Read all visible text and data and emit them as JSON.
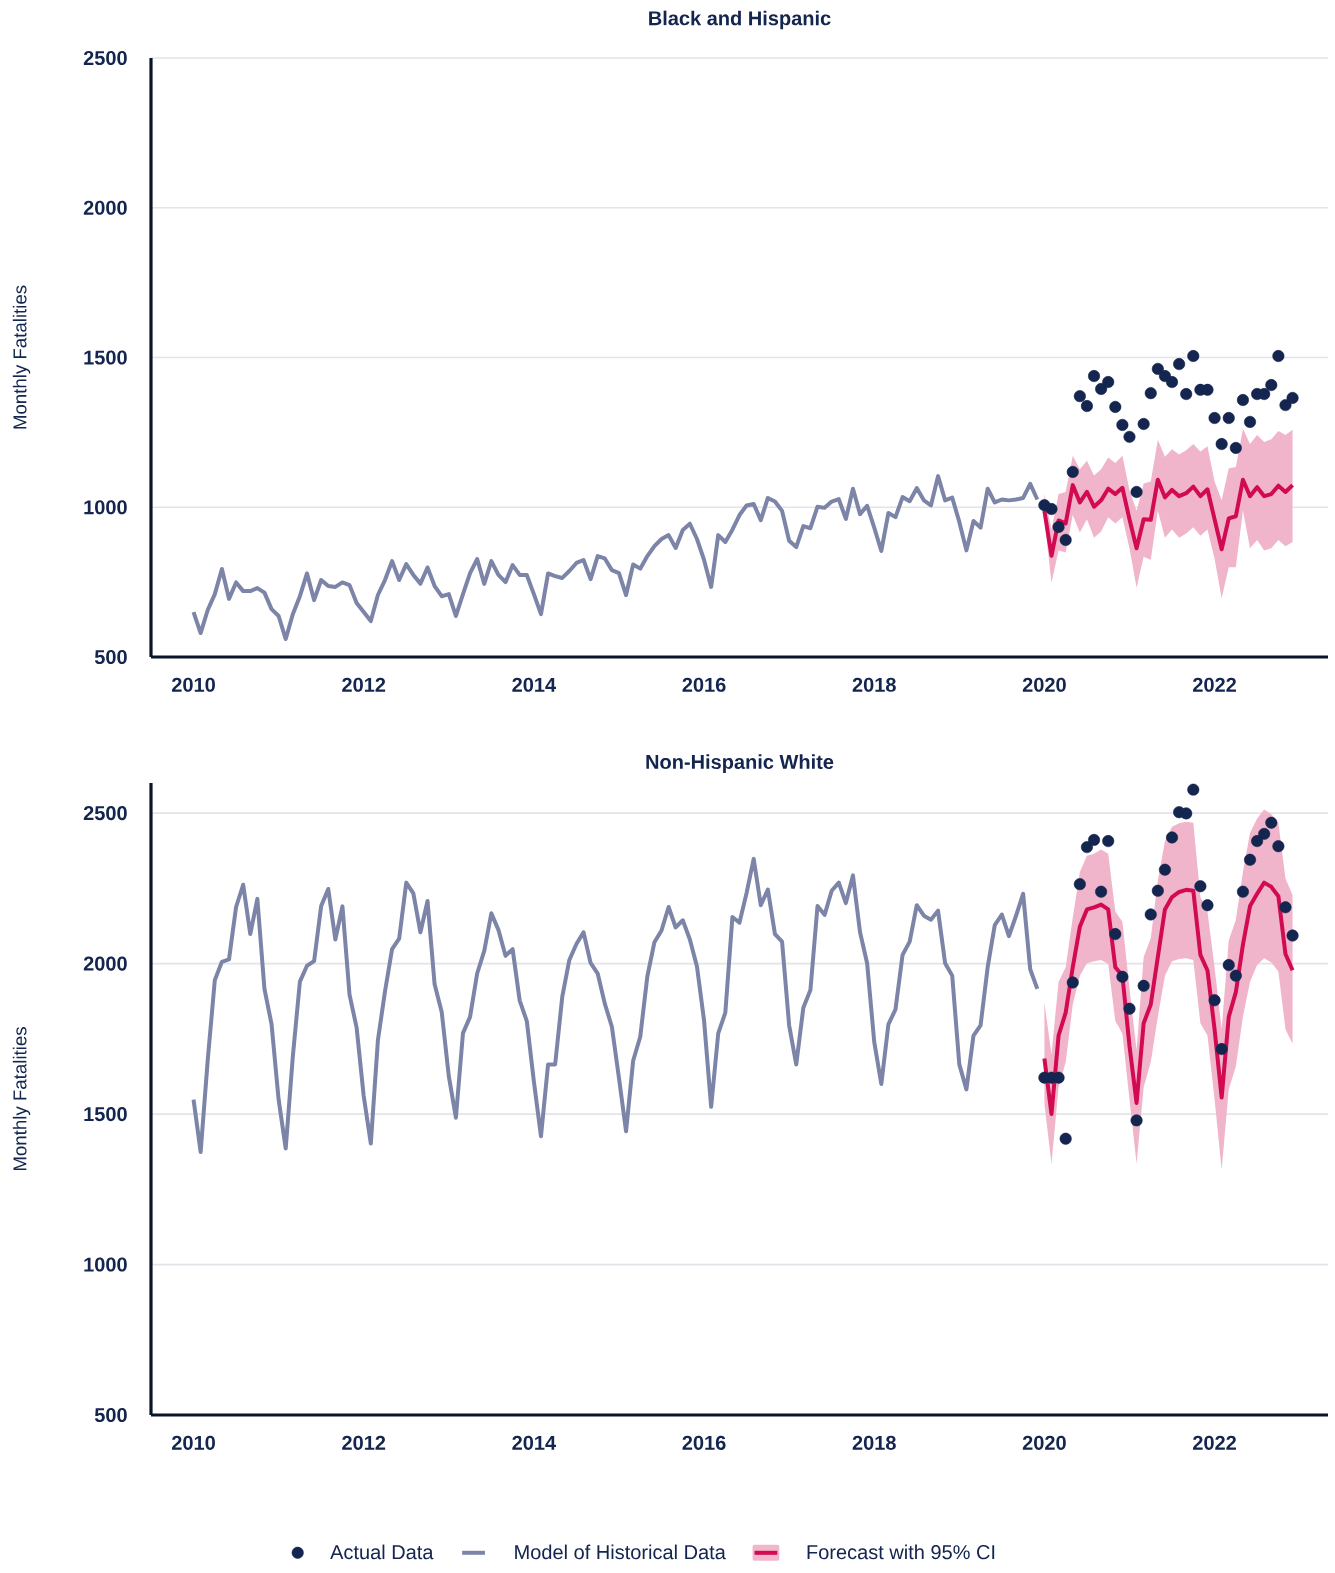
{
  "chart_data": [
    {
      "type": "line",
      "title": "Black and Hispanic",
      "ylabel": "Monthly Fatalities",
      "xlim": [
        "2009-07",
        "2023-05"
      ],
      "ylim": [
        500,
        2500
      ],
      "xticks": [
        "2010",
        "2012",
        "2014",
        "2016",
        "2018",
        "2020",
        "2022"
      ],
      "yticks": [
        500,
        1000,
        1500,
        2000,
        2500
      ],
      "grid": "y",
      "series": [
        {
          "type": "scatter",
          "marker": "circle",
          "color": "#14264f",
          "x": [
            "2020-01",
            "2020-02",
            "2020-03",
            "2020-04",
            "2020-05",
            "2020-06",
            "2020-07",
            "2020-08",
            "2020-09",
            "2020-10",
            "2020-11",
            "2020-12",
            "2021-01",
            "2021-02",
            "2021-03",
            "2021-04",
            "2021-05",
            "2021-06",
            "2021-07",
            "2021-08",
            "2021-09",
            "2021-10",
            "2021-11",
            "2021-12",
            "2022-01",
            "2022-02",
            "2022-03",
            "2022-04",
            "2022-05",
            "2022-06",
            "2022-07",
            "2022-08",
            "2022-09",
            "2022-10",
            "2022-11",
            "2022-12"
          ],
          "values": [
            1007,
            994,
            934,
            891,
            1118,
            1371,
            1338,
            1438,
            1395,
            1418,
            1335,
            1275,
            1235,
            1051,
            1278,
            1381,
            1462,
            1438,
            1418,
            1478,
            1378,
            1505,
            1392,
            1392,
            1298,
            1211,
            1298,
            1198,
            1358,
            1285,
            1378,
            1378,
            1408,
            1505,
            1341,
            1365
          ]
        },
        {
          "color": "#7c84a8",
          "x": [
            "2010-01",
            "2010-02",
            "2010-03",
            "2010-04",
            "2010-05",
            "2010-06",
            "2010-07",
            "2010-08",
            "2010-09",
            "2010-10",
            "2010-11",
            "2010-12",
            "2011-01",
            "2011-02",
            "2011-03",
            "2011-04",
            "2011-05",
            "2011-06",
            "2011-07",
            "2011-08",
            "2011-09",
            "2011-10",
            "2011-11",
            "2011-12",
            "2012-01",
            "2012-02",
            "2012-03",
            "2012-04",
            "2012-05",
            "2012-06",
            "2012-07",
            "2012-08",
            "2012-09",
            "2012-10",
            "2012-11",
            "2012-12",
            "2013-01",
            "2013-02",
            "2013-03",
            "2013-04",
            "2013-05",
            "2013-06",
            "2013-07",
            "2013-08",
            "2013-09",
            "2013-10",
            "2013-11",
            "2013-12",
            "2014-01",
            "2014-02",
            "2014-03",
            "2014-04",
            "2014-05",
            "2014-06",
            "2014-07",
            "2014-08",
            "2014-09",
            "2014-10",
            "2014-11",
            "2014-12",
            "2015-01",
            "2015-02",
            "2015-03",
            "2015-04",
            "2015-05",
            "2015-06",
            "2015-07",
            "2015-08",
            "2015-09",
            "2015-10",
            "2015-11",
            "2015-12",
            "2016-01",
            "2016-02",
            "2016-03",
            "2016-04",
            "2016-05",
            "2016-06",
            "2016-07",
            "2016-08",
            "2016-09",
            "2016-10",
            "2016-11",
            "2016-12",
            "2017-01",
            "2017-02",
            "2017-03",
            "2017-04",
            "2017-05",
            "2017-06",
            "2017-07",
            "2017-08",
            "2017-09",
            "2017-10",
            "2017-11",
            "2017-12",
            "2018-01",
            "2018-02",
            "2018-03",
            "2018-04",
            "2018-05",
            "2018-06",
            "2018-07",
            "2018-08",
            "2018-09",
            "2018-10",
            "2018-11",
            "2018-12",
            "2019-01",
            "2019-02",
            "2019-03",
            "2019-04",
            "2019-05",
            "2019-06",
            "2019-07",
            "2019-08",
            "2019-09",
            "2019-10",
            "2019-11",
            "2019-12"
          ],
          "values": [
            650,
            580,
            657,
            710,
            794,
            694,
            749,
            720,
            720,
            730,
            715,
            660,
            637,
            560,
            643,
            703,
            779,
            690,
            757,
            737,
            734,
            749,
            740,
            680,
            650,
            620,
            707,
            757,
            820,
            757,
            810,
            774,
            745,
            799,
            737,
            703,
            710,
            637,
            710,
            780,
            827,
            744,
            820,
            774,
            750,
            807,
            774,
            774,
            710,
            643,
            779,
            770,
            764,
            787,
            814,
            824,
            760,
            837,
            829,
            790,
            780,
            707,
            809,
            795,
            837,
            870,
            894,
            907,
            864,
            924,
            945,
            894,
            824,
            734,
            907,
            884,
            925,
            974,
            1006,
            1011,
            957,
            1031,
            1019,
            988,
            888,
            867,
            937,
            930,
            1002,
            998,
            1019,
            1027,
            961,
            1062,
            977,
            1005,
            932,
            854,
            981,
            967,
            1034,
            1020,
            1064,
            1023,
            1006,
            1104,
            1023,
            1032,
            951,
            856,
            954,
            932,
            1062,
            1016,
            1026,
            1023,
            1026,
            1031,
            1078,
            1026
          ]
        },
        {
          "color": "#d10a52",
          "x": [
            "2020-01",
            "2020-02",
            "2020-03",
            "2020-04",
            "2020-05",
            "2020-06",
            "2020-07",
            "2020-08",
            "2020-09",
            "2020-10",
            "2020-11",
            "2020-12",
            "2021-01",
            "2021-02",
            "2021-03",
            "2021-04",
            "2021-05",
            "2021-06",
            "2021-07",
            "2021-08",
            "2021-09",
            "2021-10",
            "2021-11",
            "2021-12",
            "2022-01",
            "2022-02",
            "2022-03",
            "2022-04",
            "2022-05",
            "2022-06",
            "2022-07",
            "2022-08",
            "2022-09",
            "2022-10",
            "2022-11",
            "2022-12"
          ],
          "values": [
            988,
            838,
            956,
            946,
            1074,
            1016,
            1051,
            1002,
            1023,
            1062,
            1044,
            1065,
            960,
            863,
            960,
            958,
            1092,
            1033,
            1058,
            1037,
            1047,
            1069,
            1037,
            1060,
            960,
            860,
            963,
            970,
            1092,
            1037,
            1067,
            1037,
            1044,
            1072,
            1051,
            1074
          ],
          "upper": [
            1044,
            926,
            1044,
            1051,
            1172,
            1127,
            1155,
            1106,
            1127,
            1166,
            1148,
            1172,
            1058,
            988,
            1079,
            1086,
            1225,
            1169,
            1194,
            1176,
            1190,
            1211,
            1186,
            1204,
            1086,
            1023,
            1130,
            1134,
            1262,
            1211,
            1241,
            1218,
            1227,
            1255,
            1241,
            1259
          ],
          "lower": [
            960,
            748,
            856,
            849,
            974,
            916,
            960,
            898,
            919,
            967,
            946,
            967,
            863,
            731,
            835,
            824,
            988,
            898,
            926,
            898,
            912,
            933,
            905,
            926,
            828,
            696,
            800,
            800,
            988,
            863,
            891,
            856,
            863,
            891,
            870,
            884
          ]
        }
      ]
    },
    {
      "type": "line",
      "title": "Non-Hispanic White",
      "ylabel": "Monthly Fatalities",
      "xlim": [
        "2009-07",
        "2023-05"
      ],
      "ylim": [
        500,
        2600
      ],
      "xticks": [
        "2010",
        "2012",
        "2014",
        "2016",
        "2018",
        "2020",
        "2022"
      ],
      "yticks": [
        500,
        1000,
        1500,
        2000,
        2500
      ],
      "grid": "y",
      "legend": "bottom",
      "series": [
        {
          "name": "Actual Data",
          "type": "scatter",
          "marker": "circle",
          "color": "#14264f",
          "x": [
            "2020-01",
            "2020-02",
            "2020-03",
            "2020-04",
            "2020-05",
            "2020-06",
            "2020-07",
            "2020-08",
            "2020-09",
            "2020-10",
            "2020-11",
            "2020-12",
            "2021-01",
            "2021-02",
            "2021-03",
            "2021-04",
            "2021-05",
            "2021-06",
            "2021-07",
            "2021-08",
            "2021-09",
            "2021-10",
            "2021-11",
            "2021-12",
            "2022-01",
            "2022-02",
            "2022-03",
            "2022-04",
            "2022-05",
            "2022-06",
            "2022-07",
            "2022-08",
            "2022-09",
            "2022-10",
            "2022-11",
            "2022-12"
          ],
          "values": [
            1621,
            1621,
            1621,
            1418,
            1937,
            2264,
            2387,
            2411,
            2239,
            2407,
            2098,
            1956,
            1850,
            1479,
            1926,
            2163,
            2242,
            2312,
            2419,
            2503,
            2499,
            2578,
            2257,
            2194,
            1878,
            1716,
            1995,
            1960,
            2239,
            2345,
            2407,
            2431,
            2468,
            2390,
            2187,
            2093
          ]
        },
        {
          "name": "Model of Historical Data",
          "color": "#7c84a8",
          "x": [
            "2010-01",
            "2010-02",
            "2010-03",
            "2010-04",
            "2010-05",
            "2010-06",
            "2010-07",
            "2010-08",
            "2010-09",
            "2010-10",
            "2010-11",
            "2010-12",
            "2011-01",
            "2011-02",
            "2011-03",
            "2011-04",
            "2011-05",
            "2011-06",
            "2011-07",
            "2011-08",
            "2011-09",
            "2011-10",
            "2011-11",
            "2011-12",
            "2012-01",
            "2012-02",
            "2012-03",
            "2012-04",
            "2012-05",
            "2012-06",
            "2012-07",
            "2012-08",
            "2012-09",
            "2012-10",
            "2012-11",
            "2012-12",
            "2013-01",
            "2013-02",
            "2013-03",
            "2013-04",
            "2013-05",
            "2013-06",
            "2013-07",
            "2013-08",
            "2013-09",
            "2013-10",
            "2013-11",
            "2013-12",
            "2014-01",
            "2014-02",
            "2014-03",
            "2014-04",
            "2014-05",
            "2014-06",
            "2014-07",
            "2014-08",
            "2014-09",
            "2014-10",
            "2014-11",
            "2014-12",
            "2015-01",
            "2015-02",
            "2015-03",
            "2015-04",
            "2015-05",
            "2015-06",
            "2015-07",
            "2015-08",
            "2015-09",
            "2015-10",
            "2015-11",
            "2015-12",
            "2016-01",
            "2016-02",
            "2016-03",
            "2016-04",
            "2016-05",
            "2016-06",
            "2016-07",
            "2016-08",
            "2016-09",
            "2016-10",
            "2016-11",
            "2016-12",
            "2017-01",
            "2017-02",
            "2017-03",
            "2017-04",
            "2017-05",
            "2017-06",
            "2017-07",
            "2017-08",
            "2017-09",
            "2017-10",
            "2017-11",
            "2017-12",
            "2018-01",
            "2018-02",
            "2018-03",
            "2018-04",
            "2018-05",
            "2018-06",
            "2018-07",
            "2018-08",
            "2018-09",
            "2018-10",
            "2018-11",
            "2018-12",
            "2019-01",
            "2019-02",
            "2019-03",
            "2019-04",
            "2019-05",
            "2019-06",
            "2019-07",
            "2019-08",
            "2019-09",
            "2019-10",
            "2019-11",
            "2019-12"
          ],
          "values": [
            1548,
            1374,
            1679,
            1945,
            2006,
            2014,
            2188,
            2262,
            2098,
            2215,
            1916,
            1799,
            1548,
            1386,
            1691,
            1940,
            1993,
            2008,
            2191,
            2248,
            2080,
            2190,
            1897,
            1787,
            1560,
            1402,
            1745,
            1907,
            2048,
            2083,
            2269,
            2233,
            2104,
            2208,
            1931,
            1839,
            1626,
            1488,
            1769,
            1823,
            1967,
            2042,
            2167,
            2112,
            2026,
            2048,
            1877,
            1809,
            1608,
            1426,
            1665,
            1665,
            1889,
            2012,
            2065,
            2104,
            2002,
            1967,
            1867,
            1790,
            1620,
            1443,
            1677,
            1757,
            1957,
            2071,
            2110,
            2188,
            2120,
            2144,
            2080,
            1990,
            1811,
            1524,
            1768,
            1837,
            2155,
            2136,
            2235,
            2348,
            2194,
            2246,
            2098,
            2073,
            1795,
            1665,
            1853,
            1912,
            2191,
            2162,
            2242,
            2269,
            2201,
            2293,
            2104,
            2001,
            1740,
            1600,
            1798,
            1848,
            2029,
            2073,
            2194,
            2159,
            2146,
            2176,
            2001,
            1960,
            1665,
            1582,
            1761,
            1795,
            1988,
            2128,
            2163,
            2091,
            2159,
            2232,
            1981,
            1916
          ]
        },
        {
          "name": "Forecast with 95% CI",
          "color": "#d10a52",
          "x": [
            "2020-01",
            "2020-02",
            "2020-03",
            "2020-04",
            "2020-05",
            "2020-06",
            "2020-07",
            "2020-08",
            "2020-09",
            "2020-10",
            "2020-11",
            "2020-12",
            "2021-01",
            "2021-02",
            "2021-03",
            "2021-04",
            "2021-05",
            "2021-06",
            "2021-07",
            "2021-08",
            "2021-09",
            "2021-10",
            "2021-11",
            "2021-12",
            "2022-01",
            "2022-02",
            "2022-03",
            "2022-04",
            "2022-05",
            "2022-06",
            "2022-07",
            "2022-08",
            "2022-09",
            "2022-10",
            "2022-11",
            "2022-12"
          ],
          "values": [
            1685,
            1500,
            1761,
            1837,
            1988,
            2122,
            2180,
            2187,
            2196,
            2180,
            1988,
            1960,
            1727,
            1537,
            1802,
            1864,
            2022,
            2180,
            2221,
            2238,
            2245,
            2242,
            2029,
            1977,
            1782,
            1555,
            1823,
            1905,
            2063,
            2191,
            2232,
            2269,
            2255,
            2224,
            2032,
            1978
          ],
          "upper": [
            1871,
            1699,
            1940,
            1988,
            2152,
            2304,
            2358,
            2365,
            2379,
            2365,
            2173,
            2139,
            1919,
            1713,
            2022,
            2084,
            2276,
            2407,
            2455,
            2466,
            2471,
            2468,
            2221,
            2173,
            1988,
            1782,
            2077,
            2146,
            2304,
            2434,
            2482,
            2512,
            2496,
            2468,
            2283,
            2228
          ],
          "lower": [
            1534,
            1335,
            1589,
            1672,
            1864,
            1960,
            2001,
            2008,
            2012,
            1999,
            1809,
            1768,
            1548,
            1335,
            1589,
            1672,
            1823,
            1960,
            2008,
            2015,
            2018,
            2012,
            1802,
            1761,
            1548,
            1315,
            1582,
            1658,
            1823,
            1940,
            1995,
            2018,
            2004,
            1974,
            1782,
            1734
          ]
        }
      ]
    }
  ]
}
